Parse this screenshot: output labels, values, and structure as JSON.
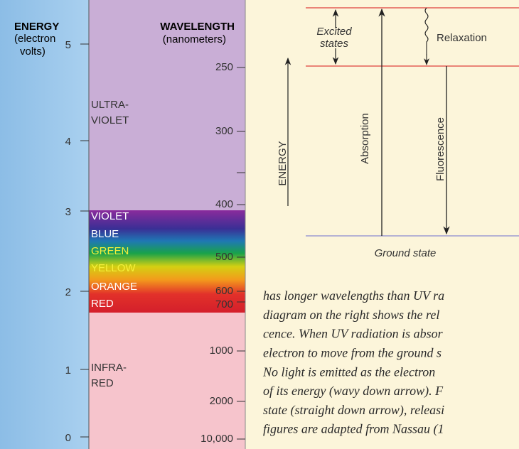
{
  "left_panel": {
    "energy_title": "ENERGY",
    "energy_subtitle": [
      "(electron",
      "volts)"
    ],
    "wavelength_title": "WAVELENGTH",
    "wavelength_subtitle": "(nanometers)",
    "energy_ticks": [
      "5",
      "4",
      "3",
      "2",
      "1",
      "0"
    ],
    "wavelength_ticks": [
      "250",
      "300",
      "400",
      "500",
      "600",
      "700",
      "1000",
      "2000",
      "10,000"
    ],
    "ultraviolet_label": [
      "ULTRA-",
      "VIOLET"
    ],
    "visible_labels": [
      "VIOLET",
      "BLUE",
      "GREEN",
      "YELLOW",
      "ORANGE",
      "RED"
    ],
    "infrared_label": [
      "INFRA-",
      "RED"
    ]
  },
  "right_diagram": {
    "excited_states": [
      "Excited",
      "states"
    ],
    "relaxation": "Relaxation",
    "energy": "ENERGY",
    "absorption": "Absorption",
    "fluorescence": "Fluorescence",
    "ground_state": "Ground state"
  },
  "paragraph": [
    "has longer wavelengths than UV ra",
    "diagram on the right shows the rel",
    "cence. When UV radiation is absor",
    "electron to move from the ground s",
    "No light is emitted as the electron",
    "of its energy (wavy down arrow). F",
    "state (straight down arrow), releasi",
    "figures are adapted from Nassau (1"
  ]
}
